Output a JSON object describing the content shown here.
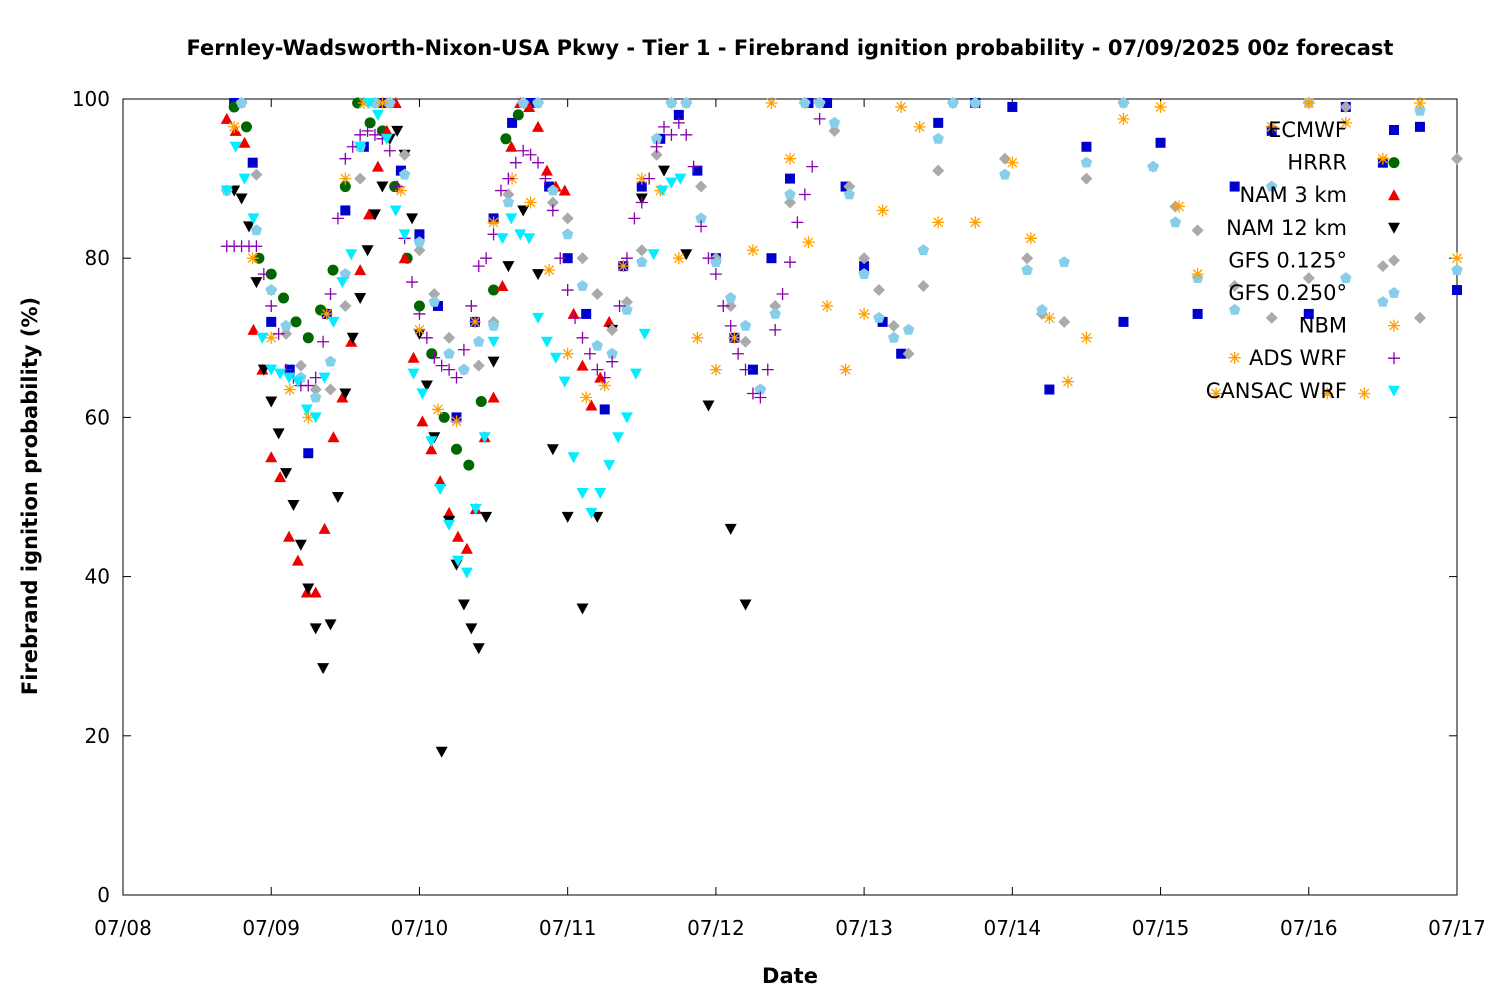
{
  "chart_data": {
    "type": "scatter",
    "title": "Fernley-Wadsworth-Nixon-USA Pkwy - Tier 1 - Firebrand ignition probability - 07/09/2025 00z forecast",
    "xlabel": "Date",
    "ylabel": "Firebrand ignition probability (%)",
    "x_ticks": [
      "07/08",
      "07/09",
      "07/10",
      "07/11",
      "07/12",
      "07/13",
      "07/14",
      "07/15",
      "07/16",
      "07/17"
    ],
    "x_units": "days since 07/08 00z",
    "xlim": [
      0,
      9
    ],
    "ylim": [
      0,
      100
    ],
    "y_ticks": [
      0,
      20,
      40,
      60,
      80,
      100
    ],
    "grid": false,
    "legend_position": "top-right",
    "series": [
      {
        "name": "ECMWF",
        "color": "#0000cc",
        "marker": "square",
        "x": [
          0.75,
          0.875,
          1.0,
          1.125,
          1.25,
          1.375,
          1.5,
          1.625,
          1.75,
          1.875,
          2.0,
          2.125,
          2.25,
          2.375,
          2.5,
          2.625,
          2.75,
          2.875,
          3.0,
          3.125,
          3.25,
          3.375,
          3.5,
          3.625,
          3.75,
          3.875,
          4.0,
          4.125,
          4.25,
          4.375,
          4.5,
          4.625,
          4.75,
          4.875,
          5.0,
          5.125,
          5.25,
          5.5,
          5.75,
          6.0,
          6.25,
          6.5,
          6.75,
          7.0,
          7.25,
          7.5,
          7.75,
          8.0,
          8.25,
          8.5,
          8.75,
          9.0
        ],
        "y": [
          99.5,
          92,
          72,
          66,
          55.5,
          73,
          86,
          94,
          99.5,
          91,
          83,
          74,
          60,
          72,
          85,
          97,
          99.5,
          89,
          80,
          73,
          61,
          79,
          89,
          95,
          98,
          91,
          80,
          70,
          66,
          80,
          90,
          99.5,
          99.5,
          89,
          79,
          72,
          68,
          97,
          99.5,
          99,
          63.5,
          94,
          72,
          94.5,
          73,
          89,
          96,
          73,
          99,
          92,
          96.5,
          76
        ]
      },
      {
        "name": "HRRR",
        "color": "#006600",
        "marker": "circle",
        "x": [
          0.75,
          0.833,
          0.917,
          1.0,
          1.083,
          1.167,
          1.25,
          1.333,
          1.417,
          1.5,
          1.583,
          1.667,
          1.75,
          1.833,
          1.917,
          2.0,
          2.083,
          2.167,
          2.25,
          2.333,
          2.417,
          2.5,
          2.583,
          2.667
        ],
        "y": [
          99,
          96.5,
          80,
          78,
          75,
          72,
          70,
          73.5,
          78.5,
          89,
          99.5,
          97,
          96,
          89,
          80,
          74,
          68,
          60,
          56,
          54,
          62,
          76,
          95,
          98
        ]
      },
      {
        "name": "NAM 3 km",
        "color": "#ee0000",
        "marker": "triangle-up",
        "x": [
          0.7,
          0.76,
          0.82,
          0.88,
          0.94,
          1.0,
          1.06,
          1.12,
          1.18,
          1.24,
          1.3,
          1.36,
          1.42,
          1.48,
          1.54,
          1.6,
          1.66,
          1.72,
          1.78,
          1.84,
          1.9,
          1.96,
          2.02,
          2.08,
          2.14,
          2.2,
          2.26,
          2.32,
          2.38,
          2.44,
          2.5,
          2.56,
          2.62,
          2.68,
          2.74,
          2.8,
          2.86,
          2.92,
          2.98,
          3.04,
          3.1,
          3.16,
          3.22,
          3.28
        ],
        "y": [
          97.5,
          96,
          94.5,
          71,
          66,
          55,
          52.5,
          45,
          42,
          38,
          38,
          46,
          57.5,
          62.5,
          69.5,
          78.5,
          85.5,
          91.5,
          96,
          99.5,
          80,
          67.5,
          59.5,
          56,
          52,
          48,
          45,
          43.5,
          48.5,
          57.5,
          62.5,
          76.5,
          94,
          99.5,
          99,
          96.5,
          91,
          89,
          88.5,
          73,
          66.5,
          61.5,
          65,
          72
        ]
      },
      {
        "name": "NAM 12 km",
        "color": "#000000",
        "marker": "triangle-down",
        "x": [
          0.75,
          0.8,
          0.85,
          0.9,
          0.95,
          1.0,
          1.05,
          1.1,
          1.15,
          1.2,
          1.25,
          1.3,
          1.35,
          1.4,
          1.45,
          1.5,
          1.55,
          1.6,
          1.65,
          1.7,
          1.75,
          1.8,
          1.85,
          1.9,
          1.95,
          2.0,
          2.05,
          2.1,
          2.15,
          2.2,
          2.25,
          2.3,
          2.35,
          2.4,
          2.45,
          2.5,
          2.6,
          2.7,
          2.8,
          2.9,
          3.0,
          3.1,
          3.2,
          3.3,
          3.5,
          3.65,
          3.8,
          3.95,
          4.1,
          4.2
        ],
        "y": [
          88.5,
          87.5,
          84,
          77,
          66,
          62,
          58,
          53,
          49,
          44,
          38.5,
          33.5,
          28.5,
          34,
          50,
          63,
          70,
          75,
          81,
          85.5,
          89,
          95,
          96,
          93,
          85,
          70.5,
          64,
          57.5,
          18,
          47,
          41.5,
          36.5,
          33.5,
          31,
          47.5,
          67,
          79,
          86,
          78,
          56,
          47.5,
          36,
          47.5,
          71,
          87.5,
          91,
          80.5,
          61.5,
          46,
          36.5
        ]
      },
      {
        "name": "GFS 0.125°",
        "color": "#aaaaaa",
        "marker": "diamond",
        "x": [
          0.7,
          0.8,
          0.9,
          1.0,
          1.1,
          1.2,
          1.3,
          1.4,
          1.5,
          1.6,
          1.7,
          1.8,
          1.9,
          2.0,
          2.1,
          2.2,
          2.3,
          2.4,
          2.5,
          2.6,
          2.7,
          2.8,
          2.9,
          3.0,
          3.1,
          3.2,
          3.3,
          3.4,
          3.5,
          3.6,
          3.7,
          3.8,
          3.9,
          4.0,
          4.1,
          4.2,
          4.3,
          4.4,
          4.5,
          4.6,
          4.7,
          4.8,
          4.9,
          5.0,
          5.1,
          5.2,
          5.3,
          5.4,
          5.5,
          5.6,
          5.75,
          5.95,
          6.1,
          6.2,
          6.35,
          6.5,
          6.75,
          6.95,
          7.1,
          7.25,
          7.5,
          7.75,
          8.0,
          8.25,
          8.5,
          8.75,
          9.0
        ],
        "y": [
          88.5,
          99.5,
          90.5,
          76,
          70.5,
          66.5,
          63.5,
          63.5,
          74,
          90,
          99.5,
          99.5,
          93,
          81,
          75.5,
          70,
          66,
          66.5,
          72,
          88,
          99.5,
          99.5,
          87,
          85,
          80,
          75.5,
          71,
          74.5,
          81,
          93,
          99.5,
          99.5,
          89,
          80,
          74,
          69.5,
          63.5,
          74,
          87,
          99.5,
          99.5,
          96,
          89,
          80,
          76,
          71.5,
          68,
          76.5,
          91,
          99.5,
          99.5,
          92.5,
          80,
          73,
          72,
          90,
          99.5,
          91.5,
          86.5,
          83.5,
          76.5,
          72.5,
          77.5,
          99,
          79,
          72.5,
          92.5
        ]
      },
      {
        "name": "GFS 0.250°",
        "color": "#87ceeb",
        "marker": "pentagon",
        "x": [
          0.7,
          0.8,
          0.9,
          1.0,
          1.1,
          1.2,
          1.3,
          1.4,
          1.5,
          1.6,
          1.7,
          1.8,
          1.9,
          2.0,
          2.1,
          2.2,
          2.3,
          2.4,
          2.5,
          2.6,
          2.7,
          2.8,
          2.9,
          3.0,
          3.1,
          3.2,
          3.3,
          3.4,
          3.5,
          3.6,
          3.7,
          3.8,
          3.9,
          4.0,
          4.1,
          4.2,
          4.3,
          4.4,
          4.5,
          4.6,
          4.7,
          4.8,
          4.9,
          5.0,
          5.1,
          5.2,
          5.3,
          5.4,
          5.5,
          5.6,
          5.75,
          5.95,
          6.1,
          6.2,
          6.35,
          6.5,
          6.75,
          6.95,
          7.1,
          7.25,
          7.5,
          7.75,
          8.0,
          8.25,
          8.5,
          8.75,
          9.0
        ],
        "y": [
          88.5,
          99.5,
          83.5,
          76,
          71.5,
          65,
          62.5,
          67,
          78,
          94,
          99.5,
          99.5,
          90.5,
          82,
          74.5,
          68,
          66,
          69.5,
          71.5,
          87,
          99.5,
          99.5,
          88.5,
          83,
          76.5,
          69,
          68,
          73.5,
          79.5,
          95,
          99.5,
          99.5,
          85,
          79.5,
          75,
          71.5,
          63.5,
          73,
          88,
          99.5,
          99.5,
          97,
          88,
          78,
          72.5,
          70,
          71,
          81,
          95,
          99.5,
          99.5,
          90.5,
          78.5,
          73.5,
          79.5,
          92,
          99.5,
          91.5,
          84.5,
          77.5,
          73.5,
          89,
          99.5,
          77.5,
          74.5,
          98.5,
          78.5
        ]
      },
      {
        "name": "NBM",
        "color": "#ffa000",
        "marker": "asterisk",
        "x": [
          0.75,
          0.875,
          1.0,
          1.125,
          1.25,
          1.375,
          1.5,
          1.625,
          1.75,
          1.875,
          2.0,
          2.125,
          2.25,
          2.375,
          2.5,
          2.625,
          2.75,
          2.875,
          3.0,
          3.125,
          3.25,
          3.375,
          3.5,
          3.625,
          3.75,
          3.875,
          4.0,
          4.125,
          4.25,
          4.375,
          4.5,
          4.625,
          4.75,
          4.875,
          5.0,
          5.125,
          5.25,
          5.375,
          5.5,
          5.75,
          6.0,
          6.125,
          6.25,
          6.375,
          6.5,
          6.75,
          7.0,
          7.125,
          7.25,
          7.375,
          7.5,
          7.75,
          8.0,
          8.125,
          8.25,
          8.375,
          8.5,
          8.75,
          9.0
        ],
        "y": [
          96.5,
          80,
          70,
          63.5,
          60,
          73,
          90,
          99.5,
          99.5,
          88.5,
          71,
          61,
          59.5,
          72,
          84.5,
          90,
          87,
          78.5,
          68,
          62.5,
          64,
          79,
          90,
          88.5,
          80,
          70,
          66,
          70,
          81,
          99.5,
          92.5,
          82,
          74,
          66,
          73,
          86,
          99,
          96.5,
          84.5,
          84.5,
          92,
          82.5,
          72.5,
          64.5,
          70,
          97.5,
          99,
          86.5,
          78,
          63,
          67.5,
          96.5,
          99.5,
          63,
          97,
          63,
          92.5,
          99.5,
          80
        ]
      },
      {
        "name": "ADS WRF",
        "color": "#8800aa",
        "marker": "plus",
        "x": [
          0.7,
          0.75,
          0.8,
          0.85,
          0.9,
          0.95,
          1.0,
          1.05,
          1.1,
          1.15,
          1.2,
          1.25,
          1.3,
          1.35,
          1.4,
          1.45,
          1.5,
          1.55,
          1.6,
          1.65,
          1.7,
          1.75,
          1.8,
          1.85,
          1.9,
          1.95,
          2.0,
          2.05,
          2.1,
          2.15,
          2.2,
          2.25,
          2.3,
          2.35,
          2.4,
          2.45,
          2.5,
          2.55,
          2.6,
          2.65,
          2.7,
          2.75,
          2.8,
          2.85,
          2.9,
          2.95,
          3.0,
          3.05,
          3.1,
          3.15,
          3.2,
          3.25,
          3.3,
          3.35,
          3.4,
          3.45,
          3.5,
          3.55,
          3.6,
          3.65,
          3.7,
          3.75,
          3.8,
          3.85,
          3.9,
          3.95,
          4.0,
          4.05,
          4.1,
          4.15,
          4.2,
          4.25,
          4.3,
          4.35,
          4.4,
          4.45,
          4.5,
          4.55,
          4.6,
          4.65,
          4.7
        ],
        "y": [
          81.5,
          81.5,
          81.5,
          81.5,
          81.5,
          78,
          74,
          70.5,
          66,
          65,
          64,
          64,
          65,
          69.5,
          75.5,
          85,
          92.5,
          94,
          95.5,
          96,
          95.5,
          95,
          93.5,
          89,
          82.5,
          77,
          73,
          70,
          67.5,
          66.5,
          66,
          65,
          68.5,
          74,
          79,
          80,
          83,
          88.5,
          90,
          92,
          93.5,
          93,
          92,
          90,
          86,
          80,
          76,
          72.5,
          70,
          68,
          66,
          65,
          67,
          74,
          80,
          85,
          87,
          90,
          94,
          96.5,
          95.5,
          97,
          95.5,
          91.5,
          84,
          80,
          78,
          74,
          71.5,
          68,
          66,
          63,
          62.5,
          66,
          71,
          75.5,
          79.5,
          84.5,
          88,
          91.5,
          97.5
        ]
      },
      {
        "name": "CANSAC WRF",
        "color": "#00eeff",
        "marker": "triangle-down",
        "x": [
          0.7,
          0.76,
          0.82,
          0.88,
          0.94,
          1.0,
          1.06,
          1.12,
          1.18,
          1.24,
          1.3,
          1.36,
          1.42,
          1.48,
          1.54,
          1.6,
          1.66,
          1.72,
          1.78,
          1.84,
          1.9,
          1.96,
          2.02,
          2.08,
          2.14,
          2.2,
          2.26,
          2.32,
          2.38,
          2.44,
          2.5,
          2.56,
          2.62,
          2.68,
          2.74,
          2.8,
          2.86,
          2.92,
          2.98,
          3.04,
          3.1,
          3.16,
          3.22,
          3.28,
          3.34,
          3.4,
          3.46,
          3.52,
          3.58,
          3.64,
          3.7,
          3.76
        ],
        "y": [
          88.5,
          94,
          90,
          85,
          70,
          66,
          65.5,
          65,
          64.5,
          61,
          60,
          65,
          72,
          77,
          80.5,
          94,
          99.5,
          98,
          95,
          86,
          83,
          65.5,
          63,
          57,
          51,
          46.5,
          42,
          40.5,
          48.5,
          57.5,
          69.5,
          82.5,
          85,
          83,
          82.5,
          72.5,
          69.5,
          67.5,
          64.5,
          55,
          50.5,
          48,
          50.5,
          54,
          57.5,
          60,
          65.5,
          70.5,
          80.5,
          88.5,
          89.5,
          90
        ]
      }
    ]
  }
}
